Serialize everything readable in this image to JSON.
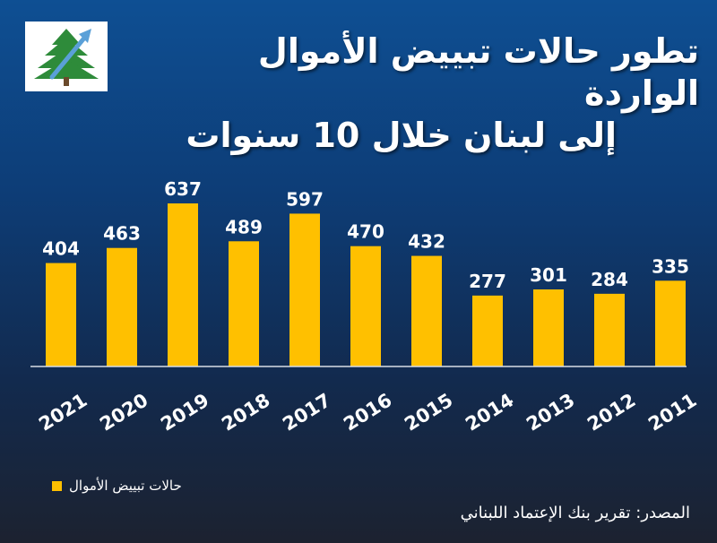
{
  "title_lines": [
    "تطور حالات تبييض الأموال الواردة",
    "إلى لبنان خلال 10 سنوات"
  ],
  "legend_label": "حالات تبييض الأموال",
  "source": "المصدر: تقرير بنك الإعتماد اللبناني",
  "colors": {
    "bar": "#ffc000",
    "axis": "#d8dde6",
    "text": "#ffffff",
    "logo_green": "#2e8b3a",
    "logo_arrow": "#5aa0d8"
  },
  "chart_data": {
    "type": "bar",
    "categories": [
      "2021",
      "2020",
      "2019",
      "2018",
      "2017",
      "2016",
      "2015",
      "2014",
      "2013",
      "2012",
      "2011"
    ],
    "values": [
      404,
      463,
      637,
      489,
      597,
      470,
      432,
      277,
      301,
      284,
      335
    ],
    "title": "تطور حالات تبييض الأموال الواردة إلى لبنان خلال 10 سنوات",
    "legend": "حالات تبييض الأموال",
    "ylim": [
      0,
      637
    ],
    "grid": false,
    "legend_position": "bottom-left",
    "data_labels": true
  }
}
